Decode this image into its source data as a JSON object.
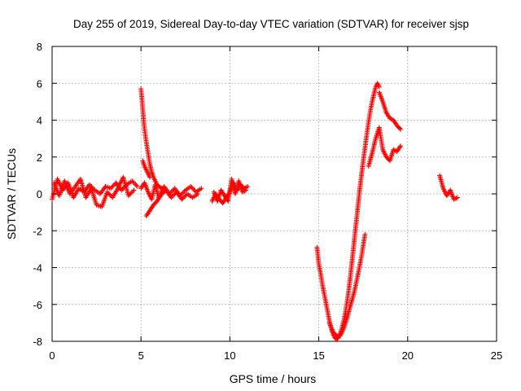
{
  "chart_data": {
    "type": "scatter",
    "title": "Day 255 of 2019, Sidereal Day-to-day VTEC variation (SDTVAR) for receiver sjsp",
    "xlabel": "GPS time / hours",
    "ylabel": "SDTVAR / TECUs",
    "xlim": [
      0,
      25
    ],
    "ylim": [
      -8,
      8
    ],
    "xticks": [
      0,
      5,
      10,
      15,
      20,
      25
    ],
    "yticks": [
      -8,
      -6,
      -4,
      -2,
      0,
      2,
      4,
      6,
      8
    ],
    "xtick_labels": [
      "0",
      "5",
      "10",
      "15",
      "20",
      "25"
    ],
    "ytick_labels": [
      "-8",
      "-6",
      "-4",
      "-2",
      "0",
      "2",
      "4",
      "6",
      "8"
    ],
    "grid": true,
    "marker": "+",
    "series": [
      {
        "name": "SDTVAR",
        "color": "#ff0000",
        "segments": [
          {
            "x": [
              0.0,
              0.3,
              0.6,
              0.9,
              1.2,
              1.5,
              1.8,
              2.1,
              2.4,
              2.7,
              3.0,
              3.3,
              3.6,
              3.9,
              4.2,
              4.5,
              4.8
            ],
            "y": [
              -0.3,
              0.8,
              0.2,
              0.6,
              -0.2,
              0.3,
              0.1,
              0.5,
              0.2,
              0.0,
              0.4,
              0.3,
              0.6,
              0.2,
              0.5,
              0.7,
              0.4
            ]
          },
          {
            "x": [
              0.1,
              0.4,
              0.7,
              1.0,
              1.3,
              1.6,
              1.9,
              2.2,
              2.5,
              2.8,
              3.1,
              3.4,
              3.7,
              4.0,
              4.3,
              4.6
            ],
            "y": [
              0.6,
              -0.1,
              0.7,
              0.0,
              0.4,
              0.8,
              -0.2,
              0.3,
              -0.6,
              -0.7,
              0.1,
              -0.2,
              0.3,
              0.9,
              -0.1,
              0.2
            ]
          },
          {
            "x": [
              5.0,
              5.05,
              5.1,
              5.15,
              5.2,
              5.3,
              5.4,
              5.5,
              5.6,
              5.7,
              5.8,
              5.9,
              6.0,
              6.2,
              6.4
            ],
            "y": [
              5.7,
              5.2,
              4.6,
              4.0,
              3.5,
              2.8,
              2.2,
              1.6,
              1.2,
              0.9,
              0.7,
              0.5,
              0.4,
              0.3,
              0.2
            ]
          },
          {
            "x": [
              5.0,
              5.2,
              5.4,
              5.6,
              5.8,
              6.0,
              6.3,
              6.6,
              6.9,
              7.2,
              7.5,
              7.8,
              8.1,
              8.4
            ],
            "y": [
              0.3,
              0.6,
              0.1,
              -0.3,
              0.5,
              -0.2,
              0.4,
              0.0,
              0.3,
              -0.1,
              0.2,
              0.4,
              0.1,
              0.3
            ]
          },
          {
            "x": [
              5.3,
              5.5,
              5.7,
              5.9,
              6.1,
              6.4,
              6.7,
              7.0,
              7.3,
              7.6,
              7.9,
              8.2
            ],
            "y": [
              -1.2,
              -0.9,
              -0.6,
              -0.4,
              -0.1,
              0.2,
              -0.2,
              0.1,
              -0.3,
              0.0,
              -0.2,
              0.0
            ]
          },
          {
            "x": [
              5.1,
              5.2,
              5.3,
              5.4,
              5.5
            ],
            "y": [
              1.8,
              1.5,
              1.3,
              1.1,
              0.9
            ]
          },
          {
            "x": [
              9.0,
              9.2,
              9.4,
              9.6,
              9.8,
              10.0,
              10.2,
              10.4,
              10.6,
              10.8,
              11.0
            ],
            "y": [
              -0.4,
              0.0,
              -0.3,
              -0.5,
              -0.2,
              0.1,
              0.6,
              0.2,
              0.5,
              0.3,
              0.4
            ]
          },
          {
            "x": [
              9.1,
              9.3,
              9.5,
              9.7,
              9.9,
              10.1,
              10.3,
              10.5,
              10.7,
              10.9
            ],
            "y": [
              0.1,
              -0.4,
              0.2,
              -0.1,
              -0.4,
              0.8,
              0.0,
              0.7,
              0.1,
              0.2
            ]
          },
          {
            "x": [
              14.9,
              15.0,
              15.1,
              15.2,
              15.3,
              15.4,
              15.5,
              15.6,
              15.7,
              15.8,
              15.9,
              16.0,
              16.1,
              16.2,
              16.3,
              16.4,
              16.5,
              16.6,
              16.7,
              16.8,
              16.9,
              17.0,
              17.1,
              17.2,
              17.3,
              17.4,
              17.5,
              17.6,
              17.7,
              17.8,
              17.9,
              18.0,
              18.1,
              18.2,
              18.3,
              18.4
            ],
            "y": [
              -2.9,
              -3.8,
              -4.3,
              -4.9,
              -5.4,
              -5.9,
              -6.4,
              -6.9,
              -7.3,
              -7.6,
              -7.8,
              -7.9,
              -7.8,
              -7.6,
              -7.3,
              -6.9,
              -6.4,
              -5.8,
              -5.1,
              -4.3,
              -3.4,
              -2.5,
              -1.6,
              -0.7,
              0.2,
              1.0,
              1.8,
              2.5,
              3.2,
              3.9,
              4.5,
              5.0,
              5.4,
              5.8,
              6.0,
              5.8
            ]
          },
          {
            "x": [
              15.6,
              15.8,
              16.0,
              16.2,
              16.4,
              16.6,
              16.8,
              17.0,
              17.2,
              17.4,
              17.6
            ],
            "y": [
              -7.0,
              -7.5,
              -7.7,
              -7.7,
              -7.3,
              -6.7,
              -6.0,
              -5.3,
              -4.4,
              -3.4,
              -2.2
            ]
          },
          {
            "x": [
              17.8,
              18.0,
              18.2,
              18.4,
              18.6,
              18.8,
              19.0,
              19.2,
              19.4,
              19.6
            ],
            "y": [
              1.5,
              2.2,
              3.0,
              3.6,
              2.4,
              2.0,
              1.8,
              2.4,
              2.3,
              2.6
            ]
          },
          {
            "x": [
              18.4,
              18.6,
              18.8,
              19.0,
              19.2,
              19.4,
              19.6
            ],
            "y": [
              5.5,
              5.0,
              4.4,
              4.1,
              4.0,
              3.7,
              3.5
            ]
          },
          {
            "x": [
              21.8,
              22.0,
              22.2,
              22.4,
              22.6,
              22.8
            ],
            "y": [
              1.0,
              0.3,
              -0.1,
              0.2,
              -0.3,
              -0.2
            ]
          }
        ]
      }
    ]
  }
}
